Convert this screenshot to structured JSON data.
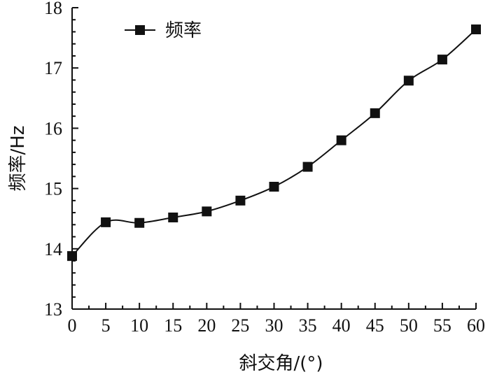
{
  "chart_data": {
    "type": "line",
    "xlabel": "斜交角/(°)",
    "ylabel": "频率/Hz",
    "xlim": [
      0,
      60
    ],
    "ylim": [
      13,
      18
    ],
    "x_ticks": [
      0,
      5,
      10,
      15,
      20,
      25,
      30,
      35,
      40,
      45,
      50,
      55,
      60
    ],
    "y_ticks": [
      13,
      14,
      15,
      16,
      17,
      18
    ],
    "grid": false,
    "legend_position": "top-left",
    "series": [
      {
        "name": "频率",
        "marker": "square",
        "color": "#111111",
        "x": [
          0,
          5,
          10,
          15,
          20,
          25,
          30,
          35,
          40,
          45,
          50,
          55,
          60
        ],
        "y": [
          13.88,
          14.44,
          14.43,
          14.52,
          14.62,
          14.8,
          15.03,
          15.36,
          15.8,
          16.25,
          16.79,
          17.14,
          17.64
        ]
      }
    ]
  }
}
